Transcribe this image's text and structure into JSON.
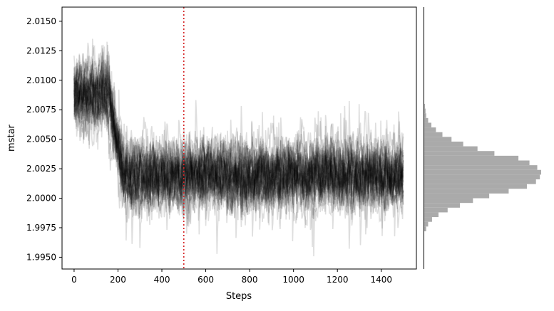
{
  "chart_data": [
    {
      "type": "line",
      "title": "",
      "xlabel": "Steps",
      "ylabel": "mstar",
      "xlim": [
        -55,
        1560
      ],
      "ylim": [
        1.994,
        2.0162
      ],
      "xticks": [
        0,
        200,
        400,
        600,
        800,
        1000,
        1200,
        1400
      ],
      "xtick_labels": [
        "0",
        "200",
        "400",
        "600",
        "800",
        "1000",
        "1200",
        "1400"
      ],
      "yticks": [
        1.995,
        1.9975,
        2.0,
        2.0025,
        2.005,
        2.0075,
        2.01,
        2.0125,
        2.015
      ],
      "ytick_labels": [
        "1.9950",
        "1.9975",
        "2.0000",
        "2.0025",
        "2.0050",
        "2.0075",
        "2.0100",
        "2.0125",
        "2.0150"
      ],
      "vline": {
        "x": 500,
        "color": "#d62728",
        "style": "dotted"
      },
      "walkers": {
        "count": 40,
        "steps": 1500,
        "color": "#000000",
        "alpha": 0.13,
        "start_mean": 2.009,
        "burn_in_mean": 2.0088,
        "burn_in_until": 150,
        "transition_end": 220,
        "equilibrium_mean": 2.002,
        "equilibrium_spread": 0.0018,
        "min_observed": 1.995,
        "max_observed": 2.0152
      },
      "grid": false
    },
    {
      "type": "histogram",
      "orientation": "horizontal",
      "shares_y_axis_with": "trace",
      "color": "#aaaaaa",
      "bins": [
        {
          "y0": 1.9972,
          "y1": 1.9976,
          "count": 3
        },
        {
          "y0": 1.9976,
          "y1": 1.998,
          "count": 6
        },
        {
          "y0": 1.998,
          "y1": 1.9984,
          "count": 12
        },
        {
          "y0": 1.9984,
          "y1": 1.9988,
          "count": 22
        },
        {
          "y0": 1.9988,
          "y1": 1.9992,
          "count": 36
        },
        {
          "y0": 1.9992,
          "y1": 1.9996,
          "count": 55
        },
        {
          "y0": 1.9996,
          "y1": 2.0,
          "count": 75
        },
        {
          "y0": 2.0,
          "y1": 2.0004,
          "count": 100
        },
        {
          "y0": 2.0004,
          "y1": 2.0008,
          "count": 130
        },
        {
          "y0": 2.0008,
          "y1": 2.0012,
          "count": 158
        },
        {
          "y0": 2.0012,
          "y1": 2.0016,
          "count": 172
        },
        {
          "y0": 2.0016,
          "y1": 2.002,
          "count": 178
        },
        {
          "y0": 2.002,
          "y1": 2.0024,
          "count": 180
        },
        {
          "y0": 2.0024,
          "y1": 2.0028,
          "count": 174
        },
        {
          "y0": 2.0028,
          "y1": 2.0032,
          "count": 162
        },
        {
          "y0": 2.0032,
          "y1": 2.0036,
          "count": 145
        },
        {
          "y0": 2.0036,
          "y1": 2.004,
          "count": 108
        },
        {
          "y0": 2.004,
          "y1": 2.0044,
          "count": 82
        },
        {
          "y0": 2.0044,
          "y1": 2.0048,
          "count": 60
        },
        {
          "y0": 2.0048,
          "y1": 2.0052,
          "count": 42
        },
        {
          "y0": 2.0052,
          "y1": 2.0056,
          "count": 28
        },
        {
          "y0": 2.0056,
          "y1": 2.006,
          "count": 18
        },
        {
          "y0": 2.006,
          "y1": 2.0064,
          "count": 11
        },
        {
          "y0": 2.0064,
          "y1": 2.0068,
          "count": 6
        },
        {
          "y0": 2.0068,
          "y1": 2.0072,
          "count": 3
        },
        {
          "y0": 2.0072,
          "y1": 2.0076,
          "count": 2
        },
        {
          "y0": 2.0076,
          "y1": 2.008,
          "count": 1
        }
      ],
      "count_max": 180
    }
  ]
}
